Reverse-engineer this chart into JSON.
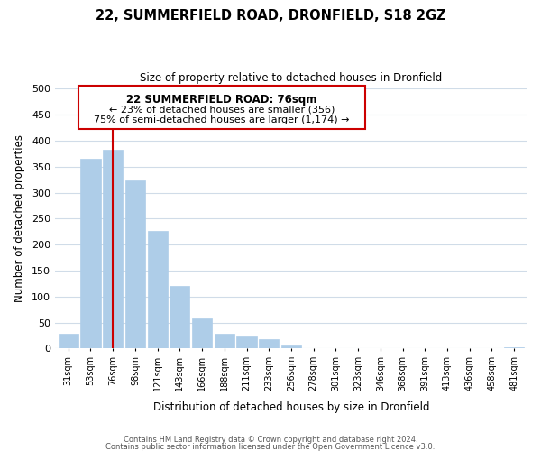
{
  "title": "22, SUMMERFIELD ROAD, DRONFIELD, S18 2GZ",
  "subtitle": "Size of property relative to detached houses in Dronfield",
  "xlabel": "Distribution of detached houses by size in Dronfield",
  "ylabel": "Number of detached properties",
  "categories": [
    "31sqm",
    "53sqm",
    "76sqm",
    "98sqm",
    "121sqm",
    "143sqm",
    "166sqm",
    "188sqm",
    "211sqm",
    "233sqm",
    "256sqm",
    "278sqm",
    "301sqm",
    "323sqm",
    "346sqm",
    "368sqm",
    "391sqm",
    "413sqm",
    "436sqm",
    "458sqm",
    "481sqm"
  ],
  "values": [
    28,
    365,
    382,
    323,
    226,
    121,
    58,
    28,
    24,
    18,
    6,
    1,
    0,
    0,
    0,
    0,
    0,
    0,
    0,
    0,
    2
  ],
  "bar_color": "#aecde8",
  "highlight_line_color": "#cc0000",
  "highlight_line_index": 2,
  "ylim": [
    0,
    500
  ],
  "yticks": [
    0,
    50,
    100,
    150,
    200,
    250,
    300,
    350,
    400,
    450,
    500
  ],
  "annotation_title": "22 SUMMERFIELD ROAD: 76sqm",
  "annotation_line1": "← 23% of detached houses are smaller (356)",
  "annotation_line2": "75% of semi-detached houses are larger (1,174) →",
  "annotation_box_color": "#ffffff",
  "annotation_box_edge_color": "#cc0000",
  "footer_line1": "Contains HM Land Registry data © Crown copyright and database right 2024.",
  "footer_line2": "Contains public sector information licensed under the Open Government Licence v3.0.",
  "grid_color": "#d0dce8",
  "background_color": "#ffffff",
  "fig_width": 6.0,
  "fig_height": 5.0
}
